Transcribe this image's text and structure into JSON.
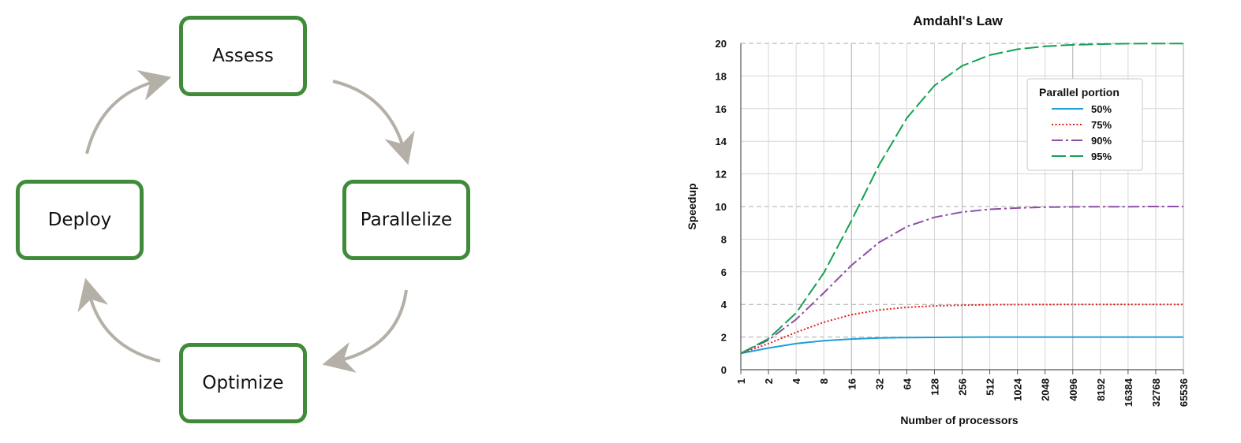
{
  "cycle": {
    "stages": [
      "Assess",
      "Parallelize",
      "Optimize",
      "Deploy"
    ],
    "arrow_color": "#b5b0a7",
    "box_border_color": "#3f8b3a"
  },
  "chart_data": {
    "type": "line",
    "title": "Amdahl's Law",
    "xlabel": "Number of processors",
    "ylabel": "Speedup",
    "x_scale": "log2",
    "x": [
      1,
      2,
      4,
      8,
      16,
      32,
      64,
      128,
      256,
      512,
      1024,
      2048,
      4096,
      8192,
      16384,
      32768,
      65536
    ],
    "x_tick_labels": [
      "1",
      "2",
      "4",
      "8",
      "16",
      "32",
      "64",
      "128",
      "256",
      "512",
      "1024",
      "2048",
      "4096",
      "8192",
      "16384",
      "32768",
      "65536"
    ],
    "ylim": [
      0,
      20
    ],
    "y_ticks": [
      0,
      2,
      4,
      6,
      8,
      10,
      12,
      14,
      16,
      18,
      20
    ],
    "grid": true,
    "legend": {
      "title": "Parallel portion",
      "placement": "top-right"
    },
    "series": [
      {
        "name": "50%",
        "color": "#1f9ed8",
        "dash": "solid",
        "values": [
          1.0,
          1.33,
          1.6,
          1.78,
          1.88,
          1.94,
          1.97,
          1.98,
          1.99,
          2.0,
          2.0,
          2.0,
          2.0,
          2.0,
          2.0,
          2.0,
          2.0
        ]
      },
      {
        "name": "75%",
        "color": "#e0201c",
        "dash": "dotted",
        "values": [
          1.0,
          1.6,
          2.29,
          2.91,
          3.37,
          3.66,
          3.82,
          3.91,
          3.95,
          3.98,
          3.99,
          3.99,
          4.0,
          4.0,
          4.0,
          4.0,
          4.0
        ]
      },
      {
        "name": "90%",
        "color": "#8b4fa6",
        "dash": "dashdot",
        "values": [
          1.0,
          1.82,
          3.08,
          4.71,
          6.4,
          7.8,
          8.77,
          9.34,
          9.66,
          9.83,
          9.91,
          9.96,
          9.98,
          9.99,
          9.99,
          10.0,
          10.0
        ]
      },
      {
        "name": "95%",
        "color": "#14a050",
        "dash": "dashed",
        "values": [
          1.0,
          1.9,
          3.48,
          5.93,
          9.14,
          12.55,
          15.42,
          17.41,
          18.62,
          19.28,
          19.64,
          19.82,
          19.91,
          19.95,
          19.98,
          19.99,
          19.99
        ]
      }
    ]
  }
}
